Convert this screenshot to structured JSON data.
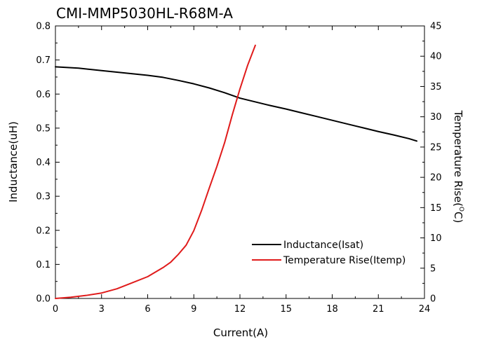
{
  "chart_data": {
    "type": "line",
    "title": "CMI-MMP5030HL-R68M-A",
    "xlabel": "Current(A)",
    "ylabel": "Inductance(uH)",
    "y2label": "Temperature Rise(°C)",
    "y2label_main": "Temperature Rise(",
    "y2label_sup": "O",
    "y2label_end": "C)",
    "xlim": [
      0,
      24
    ],
    "ylim": [
      0,
      0.8
    ],
    "y2lim": [
      0,
      45
    ],
    "xticks": [
      0,
      3,
      6,
      9,
      12,
      15,
      18,
      21,
      24
    ],
    "yticks": [
      0.0,
      0.1,
      0.2,
      0.3,
      0.4,
      0.5,
      0.6,
      0.7,
      0.8
    ],
    "yticklabels": [
      "0.0",
      "0.1",
      "0.2",
      "0.3",
      "0.4",
      "0.5",
      "0.6",
      "0.7",
      "0.8"
    ],
    "y2ticks": [
      0,
      5,
      10,
      15,
      20,
      25,
      30,
      35,
      40,
      45
    ],
    "grid": false,
    "legend_position": "lower-right",
    "series": [
      {
        "name": "Inductance(Isat)",
        "axis": "left",
        "color": "#000000",
        "x": [
          0,
          1.5,
          3,
          4.5,
          6,
          7,
          8,
          9,
          10,
          11,
          12,
          13,
          14,
          15,
          16,
          17,
          18,
          19,
          20,
          21,
          22,
          23,
          23.5
        ],
        "y": [
          0.68,
          0.676,
          0.669,
          0.662,
          0.655,
          0.649,
          0.64,
          0.63,
          0.618,
          0.604,
          0.588,
          0.577,
          0.566,
          0.556,
          0.545,
          0.534,
          0.523,
          0.512,
          0.501,
          0.49,
          0.48,
          0.469,
          0.462
        ]
      },
      {
        "name": "Temperature Rise(Itemp)",
        "axis": "right",
        "color": "#e01b1b",
        "x": [
          0,
          1,
          2,
          3,
          4,
          5,
          6,
          7,
          7.5,
          8,
          8.5,
          9,
          9.5,
          10,
          10.5,
          11,
          11.5,
          12,
          12.5,
          13
        ],
        "y": [
          0,
          0.2,
          0.5,
          0.9,
          1.6,
          2.6,
          3.6,
          5.1,
          6.0,
          7.3,
          8.8,
          11.2,
          14.5,
          18.2,
          21.8,
          25.7,
          30.3,
          34.6,
          38.5,
          41.8
        ]
      }
    ]
  }
}
